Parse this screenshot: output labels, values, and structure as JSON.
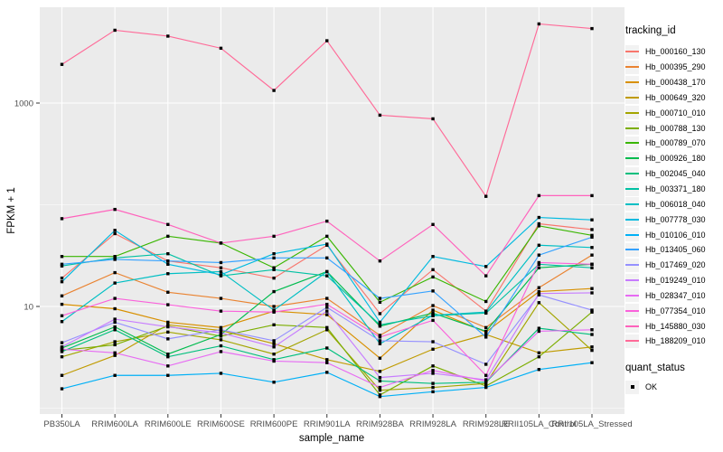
{
  "chart_data": {
    "type": "line",
    "title": "",
    "x_axis": {
      "title": "sample_name"
    },
    "y_axis": {
      "title": "FPKM + 1",
      "scale": "log10",
      "ticks": [
        {
          "value": 1000,
          "label": "1000"
        },
        {
          "value": 10,
          "label": "10"
        }
      ],
      "minor_breaks": [
        1,
        100
      ],
      "ylim": [
        1.2,
        6500
      ]
    },
    "grid": true,
    "legend_position": "right",
    "style": {
      "panel_bg": "#EBEBEB",
      "grid_color": "#FFFFFF",
      "point_color": "#000000",
      "axis_text": "#4D4D4D",
      "key_bg": "#F2F2F2"
    },
    "categories": [
      "PB350LA",
      "RRIM600LA",
      "RRIM600LE",
      "RRIM600SE",
      "RRIM600PE",
      "RRIM901LA",
      "RRIM928BA",
      "RRIM928LA",
      "RRIM928LE",
      "RRII105LA_Control",
      "RRII105LA_Stressed"
    ],
    "series": [
      {
        "name": "Hb_000160_130",
        "color": "#F8766D",
        "values": [
          19,
          52,
          28,
          24,
          19,
          40,
          8.5,
          23,
          9,
          65,
          57
        ]
      },
      {
        "name": "Hb_000395_290",
        "color": "#EA8331",
        "values": [
          12.7,
          21.5,
          13.8,
          12,
          10,
          12,
          5.2,
          10.2,
          6.2,
          15.3,
          32
        ]
      },
      {
        "name": "Hb_000438_170",
        "color": "#D89000",
        "values": [
          10.5,
          9.5,
          7,
          6.2,
          9,
          8.3,
          3.1,
          9.2,
          5.6,
          14,
          15
        ]
      },
      {
        "name": "Hb_000649_320",
        "color": "#C09B00",
        "values": [
          2.1,
          3.3,
          6.6,
          5.8,
          4.3,
          3,
          2.3,
          3.8,
          5.3,
          3.5,
          4
        ]
      },
      {
        "name": "Hb_000710_010",
        "color": "#A3A500",
        "values": [
          3.2,
          4.5,
          5.6,
          4.7,
          3.4,
          5.9,
          1.5,
          1.6,
          1.75,
          10.9,
          3.7
        ]
      },
      {
        "name": "Hb_000788_130",
        "color": "#7CAE00",
        "values": [
          3.7,
          4.2,
          6.4,
          5.1,
          6.6,
          6.2,
          1.35,
          2.6,
          1.65,
          3.2,
          8.8
        ]
      },
      {
        "name": "Hb_000789_070",
        "color": "#39B600",
        "values": [
          31,
          31,
          49,
          42,
          24,
          49,
          11,
          19.5,
          11.2,
          62,
          50
        ]
      },
      {
        "name": "Hb_000926_180",
        "color": "#00BB4E",
        "values": [
          3.9,
          6.3,
          3.4,
          5.3,
          14,
          22,
          6.4,
          8.6,
          5.7,
          24,
          26
        ]
      },
      {
        "name": "Hb_002045_040",
        "color": "#00BF7D",
        "values": [
          3.6,
          5.9,
          3.2,
          4.1,
          3,
          3.9,
          1.85,
          1.75,
          1.8,
          6.1,
          5.3
        ]
      },
      {
        "name": "Hb_003371_180",
        "color": "#00C1A3",
        "values": [
          25,
          30,
          33,
          20,
          23,
          20,
          6.6,
          8.1,
          8.6,
          26,
          24
        ]
      },
      {
        "name": "Hb_006018_040",
        "color": "#00BFC4",
        "values": [
          7.1,
          17,
          21,
          22,
          9.2,
          22,
          4.3,
          8.2,
          8.8,
          40,
          38
        ]
      },
      {
        "name": "Hb_007778_030",
        "color": "#00BAE0",
        "values": [
          17.5,
          56,
          26,
          20.5,
          33,
          41,
          7,
          31,
          24.7,
          75,
          71
        ]
      },
      {
        "name": "Hb_010106_010",
        "color": "#00B0F6",
        "values": [
          1.55,
          2.1,
          2.1,
          2.2,
          1.8,
          2.25,
          1.3,
          1.45,
          1.6,
          2.4,
          2.8
        ]
      },
      {
        "name": "Hb_013405_060",
        "color": "#35A2FF",
        "values": [
          26,
          29,
          28,
          27,
          30,
          30,
          12,
          14.2,
          5,
          32,
          48
        ]
      },
      {
        "name": "Hb_017469_020",
        "color": "#9590FF",
        "values": [
          4.4,
          7,
          4.8,
          5.9,
          4.6,
          9.8,
          4.6,
          4.5,
          2.7,
          13,
          9.2
        ]
      },
      {
        "name": "Hb_019249_010",
        "color": "#C77CFF",
        "values": [
          4,
          7.5,
          6.3,
          5.5,
          4,
          9,
          2,
          2.2,
          1.9,
          13.4,
          13.6
        ]
      },
      {
        "name": "Hb_028347_010",
        "color": "#E76BF3",
        "values": [
          3.8,
          3.5,
          2.6,
          3.6,
          2.9,
          2.8,
          1.6,
          2.35,
          1.85,
          5.7,
          5.9
        ]
      },
      {
        "name": "Hb_077354_010",
        "color": "#FA62DB",
        "values": [
          8.1,
          12,
          10.4,
          9,
          8.8,
          10.5,
          5,
          7.3,
          2.1,
          27,
          26
        ]
      },
      {
        "name": "Hb_145880_030",
        "color": "#FF62BC",
        "values": [
          73,
          90,
          64,
          42,
          49,
          69,
          28,
          64,
          20,
          123,
          123
        ]
      },
      {
        "name": "Hb_188209_010",
        "color": "#FF6A98",
        "values": [
          2400,
          5200,
          4550,
          3460,
          1330,
          4100,
          760,
          700,
          121,
          6000,
          5400
        ]
      }
    ],
    "legends": {
      "color": {
        "title": "tracking_id"
      },
      "shape": {
        "title": "quant_status",
        "items": [
          "OK"
        ]
      }
    }
  }
}
